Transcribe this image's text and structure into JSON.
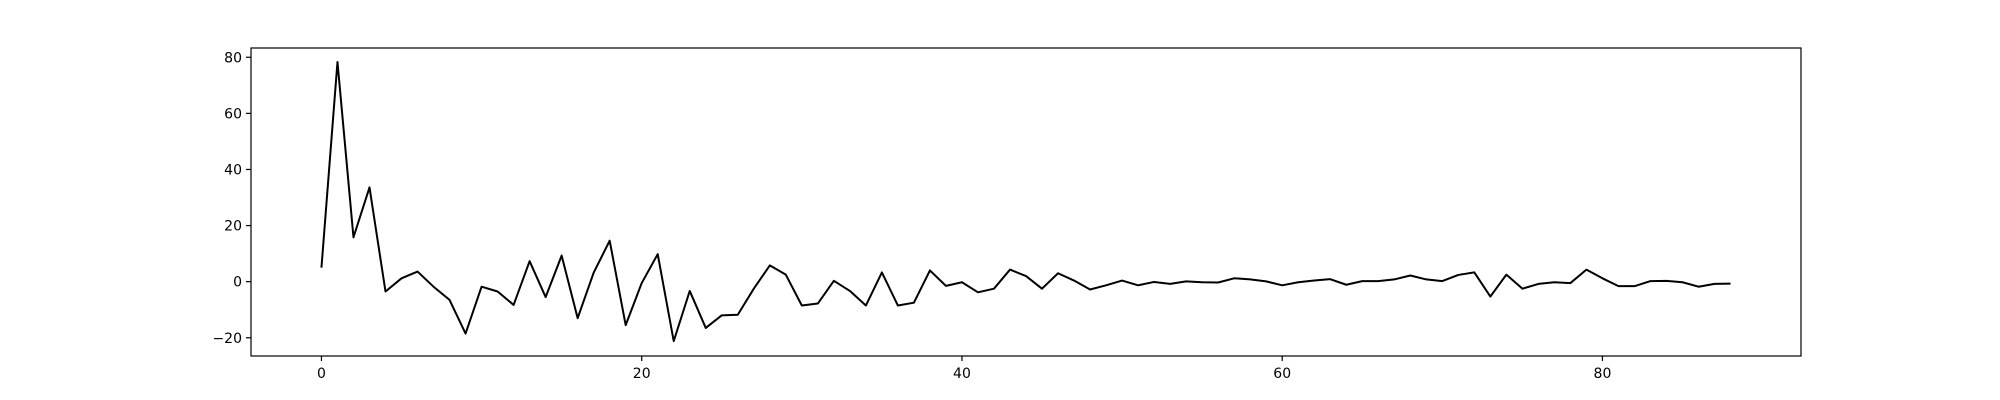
{
  "chart_data": {
    "type": "line",
    "title": "",
    "xlabel": "",
    "ylabel": "",
    "xlim": [
      -4.4,
      92.4
    ],
    "ylim": [
      -26.5,
      83.3
    ],
    "grid": false,
    "legend": false,
    "line_color": "#000000",
    "xticks": [
      0,
      20,
      40,
      60,
      80
    ],
    "yticks": [
      -20,
      0,
      20,
      40,
      60,
      80
    ],
    "xtick_labels": [
      "0",
      "20",
      "40",
      "60",
      "80"
    ],
    "ytick_labels": [
      "−20",
      "0",
      "20",
      "40",
      "60",
      "80"
    ],
    "series": [
      {
        "x": [
          0,
          1,
          2,
          3,
          4,
          5,
          6,
          7,
          8,
          9,
          10,
          11,
          12,
          13,
          14,
          15,
          16,
          17,
          18,
          19,
          20,
          21,
          22,
          23,
          24,
          25,
          26,
          27,
          28,
          29,
          30,
          31,
          32,
          33,
          34,
          35,
          36,
          37,
          38,
          39,
          40,
          41,
          42,
          43,
          44,
          45,
          46,
          47,
          48,
          49,
          50,
          51,
          52,
          53,
          54,
          55,
          56,
          57,
          58,
          59,
          60,
          61,
          62,
          63,
          64,
          65,
          66,
          67,
          68,
          69,
          70,
          71,
          72,
          73,
          74,
          75,
          76,
          77,
          78,
          79,
          80,
          81,
          82,
          83,
          84,
          85,
          86,
          87,
          88
        ],
        "y": [
          5.0,
          78.3,
          15.8,
          33.6,
          -3.5,
          1.2,
          3.6,
          -1.8,
          -6.5,
          -18.5,
          -1.8,
          -3.5,
          -8.3,
          7.3,
          -5.5,
          9.3,
          -13.0,
          3.2,
          14.6,
          -15.5,
          -0.5,
          9.8,
          -21.2,
          -3.3,
          -16.5,
          -12.0,
          -11.8,
          -2.5,
          5.8,
          2.5,
          -8.5,
          -7.8,
          0.3,
          -3.3,
          -8.5,
          3.3,
          -8.5,
          -7.5,
          4.0,
          -1.5,
          -0.2,
          -3.8,
          -2.5,
          4.3,
          2.0,
          -2.5,
          3.0,
          0.4,
          -2.8,
          -1.3,
          0.4,
          -1.3,
          -0.1,
          -0.8,
          0.1,
          -0.2,
          -0.3,
          1.2,
          0.8,
          0.1,
          -1.3,
          -0.2,
          0.4,
          0.9,
          -1.1,
          0.2,
          0.2,
          0.8,
          2.2,
          0.8,
          0.2,
          2.4,
          3.3,
          -5.3,
          2.5,
          -2.5,
          -0.8,
          -0.2,
          -0.5,
          4.3,
          1.2,
          -1.6,
          -1.6,
          0.2,
          0.3,
          -0.2,
          -1.8,
          -0.8,
          -0.7
        ]
      }
    ]
  }
}
